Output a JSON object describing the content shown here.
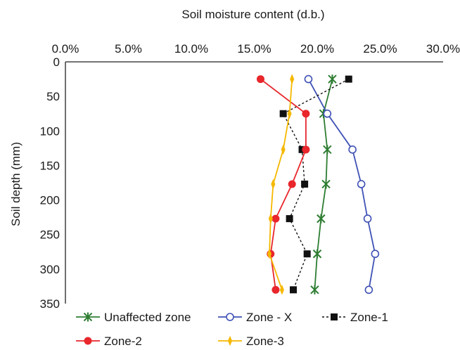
{
  "chart_data": {
    "type": "line",
    "xlabel": "Soil moisture content (d.b.)",
    "ylabel": "Soil depth (mm)",
    "xlim": [
      0,
      0.3
    ],
    "ylim": [
      0,
      350
    ],
    "x_axis_position": "top",
    "y_axis_inverted": true,
    "grid": false,
    "x_ticks": [
      0,
      0.05,
      0.1,
      0.15,
      0.2,
      0.25,
      0.3
    ],
    "x_tick_labels": [
      "0.0%",
      "5.0%",
      "10.0%",
      "15.0%",
      "20.0%",
      "25.0%",
      "30.0%"
    ],
    "y_ticks": [
      0,
      50,
      100,
      150,
      200,
      250,
      300,
      350
    ],
    "y_tick_labels": [
      "0",
      "50",
      "100",
      "150",
      "200",
      "250",
      "300",
      "350"
    ],
    "legend_position": "bottom",
    "series": [
      {
        "name": "Unaffected zone",
        "color": "#2e7d32",
        "marker": "x-star",
        "dash": "solid",
        "points": [
          {
            "x": 0.212,
            "y": 25
          },
          {
            "x": 0.205,
            "y": 75
          },
          {
            "x": 0.208,
            "y": 127
          },
          {
            "x": 0.207,
            "y": 177
          },
          {
            "x": 0.203,
            "y": 227
          },
          {
            "x": 0.2,
            "y": 278
          },
          {
            "x": 0.198,
            "y": 330
          }
        ]
      },
      {
        "name": "Zone - X",
        "color": "#3f51b5",
        "marker": "open-circle",
        "dash": "solid",
        "points": [
          {
            "x": 0.193,
            "y": 25
          },
          {
            "x": 0.208,
            "y": 75
          },
          {
            "x": 0.228,
            "y": 127
          },
          {
            "x": 0.235,
            "y": 177
          },
          {
            "x": 0.24,
            "y": 227
          },
          {
            "x": 0.246,
            "y": 278
          },
          {
            "x": 0.241,
            "y": 330
          }
        ]
      },
      {
        "name": "Zone-1",
        "color": "#111111",
        "marker": "square",
        "dash": "dashed",
        "points": [
          {
            "x": 0.225,
            "y": 25
          },
          {
            "x": 0.173,
            "y": 75
          },
          {
            "x": 0.188,
            "y": 127
          },
          {
            "x": 0.19,
            "y": 177
          },
          {
            "x": 0.178,
            "y": 227
          },
          {
            "x": 0.192,
            "y": 278
          },
          {
            "x": 0.181,
            "y": 330
          }
        ]
      },
      {
        "name": "Zone-2",
        "color": "#e8262b",
        "marker": "filled-circle",
        "dash": "solid",
        "points": [
          {
            "x": 0.155,
            "y": 25
          },
          {
            "x": 0.191,
            "y": 75
          },
          {
            "x": 0.191,
            "y": 127
          },
          {
            "x": 0.18,
            "y": 177
          },
          {
            "x": 0.167,
            "y": 227
          },
          {
            "x": 0.163,
            "y": 278
          },
          {
            "x": 0.167,
            "y": 330
          }
        ]
      },
      {
        "name": "Zone-3",
        "color": "#f5b800",
        "marker": "plus",
        "dash": "solid",
        "points": [
          {
            "x": 0.18,
            "y": 25
          },
          {
            "x": 0.178,
            "y": 75
          },
          {
            "x": 0.173,
            "y": 127
          },
          {
            "x": 0.165,
            "y": 177
          },
          {
            "x": 0.163,
            "y": 227
          },
          {
            "x": 0.162,
            "y": 278
          },
          {
            "x": 0.172,
            "y": 330
          }
        ]
      }
    ]
  }
}
